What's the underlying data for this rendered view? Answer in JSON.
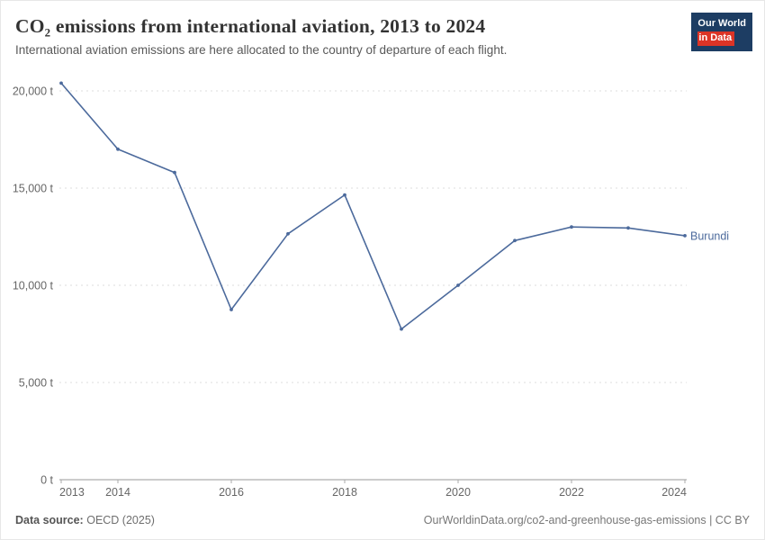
{
  "header": {
    "logo": {
      "line1": "Our World",
      "line2": "in Data"
    }
  },
  "chart_data": {
    "type": "line",
    "title": "CO₂ emissions from international aviation, 2013 to 2024",
    "subtitle": "International aviation emissions are here allocated to the country of departure of each flight.",
    "series_label": "Burundi",
    "x": [
      2013,
      2014,
      2015,
      2016,
      2017,
      2018,
      2019,
      2020,
      2021,
      2022,
      2023,
      2024
    ],
    "values": [
      20400,
      17000,
      15800,
      8750,
      12650,
      14650,
      7750,
      10000,
      12300,
      13000,
      12950,
      12550
    ],
    "unit": "t",
    "ylim": [
      0,
      20000
    ],
    "yticks": [
      0,
      5000,
      10000,
      15000,
      20000
    ],
    "ytick_labels": [
      "0 t",
      "5,000 t",
      "10,000 t",
      "15,000 t",
      "20,000 t"
    ],
    "xticks": [
      2013,
      2014,
      2016,
      2018,
      2020,
      2022,
      2024
    ],
    "line_color": "#4C6A9C",
    "grid": true,
    "legend_position": "end-of-line"
  },
  "footer": {
    "source_label": "Data source:",
    "source": "OECD (2025)",
    "link": "OurWorldinData.org/co2-and-greenhouse-gas-emissions | CC BY"
  }
}
